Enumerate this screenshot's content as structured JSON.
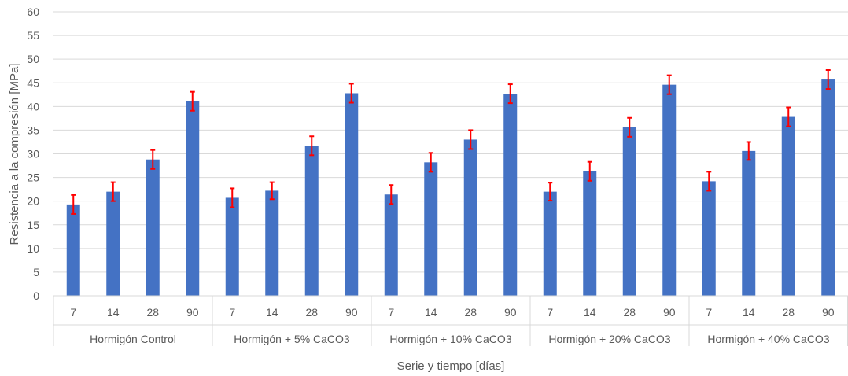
{
  "chart_data": {
    "type": "bar",
    "xlabel": "Serie y tiempo [días]",
    "ylabel": "Resistencia a la compresión [MPa]",
    "ylim": [
      0,
      60
    ],
    "ytick_step": 5,
    "grid": true,
    "colors": {
      "bar": "#4472c4",
      "error_bar": "#ff0000",
      "grid": "#d9d9d9",
      "text": "#595959"
    },
    "groups": [
      {
        "label": "Hormigón Control",
        "categories": [
          "7",
          "14",
          "28",
          "90"
        ],
        "values": [
          19.3,
          22.0,
          28.8,
          41.1
        ],
        "errors": [
          2.0,
          2.0,
          2.0,
          2.0
        ]
      },
      {
        "label": "Hormigón + 5% CaCO3",
        "categories": [
          "7",
          "14",
          "28",
          "90"
        ],
        "values": [
          20.7,
          22.2,
          31.7,
          42.8
        ],
        "errors": [
          2.0,
          1.8,
          2.0,
          2.0
        ]
      },
      {
        "label": "Hormigón + 10% CaCO3",
        "categories": [
          "7",
          "14",
          "28",
          "90"
        ],
        "values": [
          21.4,
          28.2,
          33.0,
          42.7
        ],
        "errors": [
          2.0,
          2.0,
          2.0,
          2.0
        ]
      },
      {
        "label": "Hormigón + 20% CaCO3",
        "categories": [
          "7",
          "14",
          "28",
          "90"
        ],
        "values": [
          22.0,
          26.3,
          35.6,
          44.6
        ],
        "errors": [
          1.9,
          2.0,
          2.0,
          2.0
        ]
      },
      {
        "label": "Hormigón + 40% CaCO3",
        "categories": [
          "7",
          "14",
          "28",
          "90"
        ],
        "values": [
          24.2,
          30.6,
          37.8,
          45.7
        ],
        "errors": [
          2.0,
          1.9,
          2.0,
          2.0
        ]
      }
    ]
  }
}
